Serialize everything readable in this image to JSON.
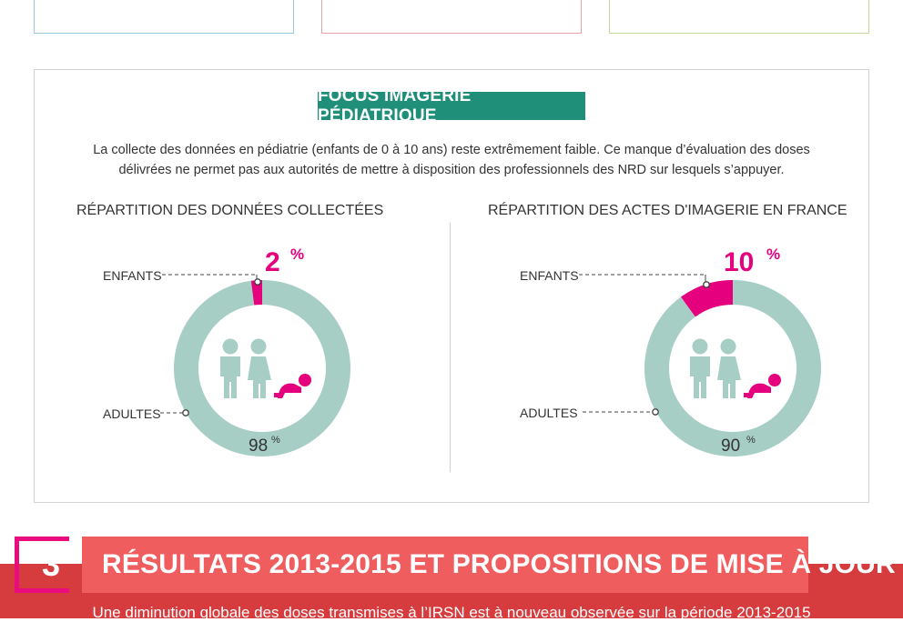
{
  "focus": {
    "badge": "FOCUS IMAGERIE PÉDIATRIQUE",
    "intro_line1": "La collecte des données en pédiatrie (enfants de 0 à 10 ans) reste extrêmement faible. Ce manque d’évaluation des doses",
    "intro_line2": "délivrées ne permet pas aux autorités de mettre à disposition des professionnels des NRD sur lesquels s’appuyer."
  },
  "charts": [
    {
      "title": "RÉPARTITION DES DONNÉES COLLECTÉES",
      "children_label": "ENFANTS",
      "adults_label": "ADULTES",
      "children_value": "2",
      "adults_value": "98",
      "percent": "%"
    },
    {
      "title": "RÉPARTITION DES ACTES D'IMAGERIE EN FRANCE",
      "children_label": "ENFANTS",
      "adults_label": "ADULTES",
      "children_value": "10",
      "adults_value": "90",
      "percent": "%"
    }
  ],
  "chart_data": [
    {
      "type": "pie",
      "title": "RÉPARTITION DES DONNÉES COLLECTÉES",
      "categories": [
        "ENFANTS",
        "ADULTES"
      ],
      "values": [
        2,
        98
      ],
      "colors": [
        "#e5007e",
        "#a6cec5"
      ]
    },
    {
      "type": "pie",
      "title": "RÉPARTITION DES ACTES D'IMAGERIE EN FRANCE",
      "categories": [
        "ENFANTS",
        "ADULTES"
      ],
      "values": [
        10,
        90
      ],
      "colors": [
        "#e5007e",
        "#a6cec5"
      ]
    }
  ],
  "section": {
    "number": "3",
    "title": "RÉSULTATS 2013-2015 ET PROPOSITIONS DE MISE À JOUR",
    "text": "Une diminution globale des doses transmises à l’IRSN est à nouveau observée sur la période 2013-2015"
  },
  "colors": {
    "teal": "#1f8f7a",
    "donut": "#a6cec5",
    "pink": "#e5007e",
    "red_band": "#d63c3e",
    "red_head": "#f05d5e"
  }
}
